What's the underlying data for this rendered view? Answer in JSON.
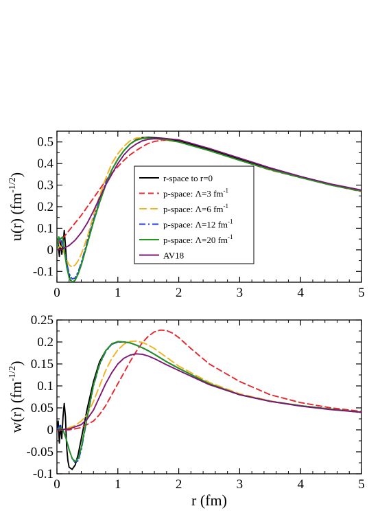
{
  "colors": {
    "r_space": "#000000",
    "lambda3": "#e8262b",
    "lambda6": "#f2b21c",
    "lambda12": "#1f3de6",
    "lambda20": "#22941f",
    "av18": "#7b1672"
  },
  "chart_data": [
    {
      "type": "line",
      "ylabel": "u(r) (fm^-1/2)",
      "xlim": [
        0,
        5
      ],
      "ylim": [
        -0.15,
        0.55
      ],
      "xticks": [
        "0",
        "1",
        "2",
        "3",
        "4",
        "5"
      ],
      "yticks": [
        "-0.1",
        "0",
        "0.1",
        "0.2",
        "0.3",
        "0.4",
        "0.5"
      ],
      "legend_position": "center-left",
      "series": [
        {
          "name": "r-space to r=0",
          "color_key": "r_space",
          "dash": "solid",
          "x": [
            0.0,
            0.02,
            0.04,
            0.06,
            0.08,
            0.1,
            0.12,
            0.14,
            0.16,
            0.18,
            0.22,
            0.26,
            0.3,
            0.35,
            0.4,
            0.5,
            0.6,
            0.7,
            0.8,
            0.9,
            1.0,
            1.1,
            1.2,
            1.3,
            1.4,
            1.5,
            1.6,
            1.8,
            2.0,
            2.5,
            3.0,
            3.5,
            4.0,
            4.5,
            5.0
          ],
          "y": [
            0.0,
            0.03,
            -0.03,
            0.04,
            -0.02,
            0.02,
            0.09,
            0.02,
            -0.06,
            -0.1,
            -0.14,
            -0.15,
            -0.14,
            -0.11,
            -0.07,
            0.03,
            0.13,
            0.22,
            0.3,
            0.37,
            0.42,
            0.46,
            0.49,
            0.51,
            0.52,
            0.522,
            0.52,
            0.515,
            0.505,
            0.465,
            0.42,
            0.375,
            0.34,
            0.3,
            0.275
          ]
        },
        {
          "name": "p-space: Λ=3 fm",
          "name_sup": "-1",
          "color_key": "lambda3",
          "dash": "8,5",
          "x": [
            0.0,
            0.1,
            0.2,
            0.3,
            0.4,
            0.5,
            0.6,
            0.7,
            0.8,
            0.9,
            1.0,
            1.1,
            1.2,
            1.3,
            1.4,
            1.5,
            1.6,
            1.7,
            1.8,
            2.0,
            2.5,
            3.0,
            3.5,
            4.0,
            4.5,
            5.0
          ],
          "y": [
            0.02,
            0.055,
            0.09,
            0.125,
            0.16,
            0.2,
            0.24,
            0.28,
            0.32,
            0.355,
            0.385,
            0.415,
            0.44,
            0.46,
            0.478,
            0.493,
            0.502,
            0.507,
            0.508,
            0.5,
            0.46,
            0.415,
            0.37,
            0.335,
            0.3,
            0.27
          ]
        },
        {
          "name": "p-space: Λ=6 fm",
          "name_sup": "-1",
          "color_key": "lambda6",
          "dash": "11,5",
          "x": [
            0.0,
            0.05,
            0.1,
            0.15,
            0.2,
            0.25,
            0.3,
            0.35,
            0.4,
            0.5,
            0.6,
            0.7,
            0.8,
            0.9,
            1.0,
            1.1,
            1.2,
            1.3,
            1.4,
            1.5,
            1.6,
            1.8,
            2.0,
            2.5,
            3.0,
            3.5,
            4.0,
            4.5,
            5.0
          ],
          "y": [
            0.0,
            0.02,
            0.0,
            -0.04,
            -0.07,
            -0.08,
            -0.07,
            -0.05,
            -0.02,
            0.06,
            0.16,
            0.25,
            0.33,
            0.4,
            0.445,
            0.48,
            0.505,
            0.518,
            0.52,
            0.518,
            0.515,
            0.508,
            0.5,
            0.46,
            0.415,
            0.372,
            0.335,
            0.3,
            0.272
          ]
        },
        {
          "name": "p-space: Λ=12 fm",
          "name_sup": "-1",
          "color_key": "lambda12",
          "dash": "9,4,2,4",
          "x": [
            0.0,
            0.04,
            0.08,
            0.12,
            0.16,
            0.2,
            0.25,
            0.3,
            0.35,
            0.4,
            0.5,
            0.6,
            0.7,
            0.8,
            0.9,
            1.0,
            1.1,
            1.2,
            1.3,
            1.4,
            1.5,
            1.6,
            1.8,
            2.0,
            2.5,
            3.0,
            3.5,
            4.0,
            4.5,
            5.0
          ],
          "y": [
            0.0,
            0.05,
            0.04,
            0.0,
            -0.06,
            -0.11,
            -0.135,
            -0.13,
            -0.1,
            -0.06,
            0.04,
            0.14,
            0.23,
            0.31,
            0.37,
            0.42,
            0.46,
            0.49,
            0.508,
            0.516,
            0.518,
            0.516,
            0.51,
            0.5,
            0.46,
            0.415,
            0.372,
            0.335,
            0.3,
            0.272
          ]
        },
        {
          "name": "p-space: Λ=20 fm",
          "name_sup": "-1",
          "color_key": "lambda20",
          "dash": "solid",
          "x": [
            0.0,
            0.03,
            0.06,
            0.09,
            0.12,
            0.16,
            0.2,
            0.25,
            0.3,
            0.35,
            0.4,
            0.5,
            0.6,
            0.7,
            0.8,
            0.9,
            1.0,
            1.1,
            1.2,
            1.3,
            1.4,
            1.5,
            1.6,
            1.8,
            2.0,
            2.5,
            3.0,
            3.5,
            4.0,
            4.5,
            5.0
          ],
          "y": [
            0.0,
            0.06,
            0.05,
            0.06,
            0.0,
            -0.08,
            -0.13,
            -0.15,
            -0.14,
            -0.11,
            -0.07,
            0.03,
            0.13,
            0.22,
            0.3,
            0.37,
            0.42,
            0.46,
            0.49,
            0.508,
            0.516,
            0.518,
            0.516,
            0.51,
            0.5,
            0.46,
            0.415,
            0.372,
            0.335,
            0.3,
            0.272
          ]
        },
        {
          "name": "AV18",
          "color_key": "av18",
          "dash": "solid",
          "x": [
            0.0,
            0.1,
            0.2,
            0.3,
            0.4,
            0.5,
            0.6,
            0.7,
            0.8,
            0.9,
            1.0,
            1.1,
            1.2,
            1.3,
            1.4,
            1.5,
            1.6,
            1.8,
            2.0,
            2.5,
            3.0,
            3.5,
            4.0,
            4.5,
            5.0
          ],
          "y": [
            0.0,
            0.005,
            0.02,
            0.045,
            0.08,
            0.125,
            0.18,
            0.24,
            0.3,
            0.35,
            0.4,
            0.44,
            0.47,
            0.49,
            0.505,
            0.512,
            0.515,
            0.515,
            0.51,
            0.47,
            0.425,
            0.38,
            0.34,
            0.305,
            0.277
          ]
        }
      ]
    },
    {
      "type": "line",
      "xlabel": "r (fm)",
      "ylabel": "w(r) (fm^-1/2)",
      "xlim": [
        0,
        5
      ],
      "ylim": [
        -0.1,
        0.25
      ],
      "xticks": [
        "0",
        "1",
        "2",
        "3",
        "4",
        "5"
      ],
      "yticks": [
        "-0.1",
        "-0.05",
        "0",
        "0.05",
        "0.1",
        "0.15",
        "0.2",
        "0.25"
      ],
      "series": [
        {
          "name": "r-space to r=0",
          "color_key": "r_space",
          "x": [
            0.0,
            0.02,
            0.04,
            0.06,
            0.08,
            0.1,
            0.12,
            0.14,
            0.16,
            0.18,
            0.2,
            0.25,
            0.3,
            0.35,
            0.4,
            0.5,
            0.6,
            0.7,
            0.8,
            0.9,
            1.0,
            1.1,
            1.2,
            1.3,
            1.4,
            1.5,
            1.6,
            1.8,
            2.0,
            2.5,
            3.0,
            3.5,
            4.0,
            4.5,
            5.0
          ],
          "y": [
            0.0,
            0.02,
            -0.03,
            0.01,
            -0.02,
            0.03,
            0.06,
            0.03,
            -0.04,
            -0.07,
            -0.085,
            -0.09,
            -0.08,
            -0.055,
            -0.02,
            0.05,
            0.11,
            0.155,
            0.18,
            0.195,
            0.2,
            0.2,
            0.198,
            0.193,
            0.187,
            0.18,
            0.172,
            0.155,
            0.14,
            0.105,
            0.08,
            0.065,
            0.055,
            0.047,
            0.04
          ]
        },
        {
          "name": "p-space: Λ=3 fm",
          "color_key": "lambda3",
          "x": [
            0.0,
            0.2,
            0.4,
            0.6,
            0.7,
            0.8,
            0.9,
            1.0,
            1.1,
            1.2,
            1.3,
            1.4,
            1.5,
            1.6,
            1.7,
            1.8,
            1.9,
            2.0,
            2.2,
            2.5,
            3.0,
            3.5,
            4.0,
            4.5,
            5.0
          ],
          "y": [
            0.0,
            0.0,
            0.005,
            0.02,
            0.035,
            0.055,
            0.08,
            0.105,
            0.13,
            0.155,
            0.178,
            0.198,
            0.213,
            0.223,
            0.227,
            0.226,
            0.22,
            0.21,
            0.185,
            0.15,
            0.11,
            0.08,
            0.062,
            0.05,
            0.042
          ]
        },
        {
          "name": "p-space: Λ=6 fm",
          "color_key": "lambda6",
          "x": [
            0.0,
            0.1,
            0.2,
            0.3,
            0.4,
            0.5,
            0.6,
            0.7,
            0.8,
            0.9,
            1.0,
            1.1,
            1.2,
            1.3,
            1.4,
            1.5,
            1.6,
            1.8,
            2.0,
            2.5,
            3.0,
            3.5,
            4.0,
            4.5,
            5.0
          ],
          "y": [
            0.0,
            0.0,
            0.005,
            0.01,
            0.02,
            0.035,
            0.065,
            0.1,
            0.135,
            0.162,
            0.182,
            0.195,
            0.201,
            0.202,
            0.199,
            0.193,
            0.185,
            0.165,
            0.145,
            0.108,
            0.082,
            0.066,
            0.055,
            0.047,
            0.04
          ]
        },
        {
          "name": "p-space: Λ=12 fm",
          "color_key": "lambda12",
          "x": [
            0.0,
            0.05,
            0.1,
            0.15,
            0.2,
            0.25,
            0.3,
            0.35,
            0.4,
            0.5,
            0.6,
            0.7,
            0.8,
            0.9,
            1.0,
            1.1,
            1.2,
            1.3,
            1.4,
            1.5,
            1.6,
            1.8,
            2.0,
            2.5,
            3.0,
            3.5,
            4.0,
            4.5,
            5.0
          ],
          "y": [
            0.0,
            0.01,
            0.0,
            -0.02,
            -0.045,
            -0.065,
            -0.075,
            -0.07,
            -0.045,
            0.03,
            0.1,
            0.148,
            0.178,
            0.195,
            0.2,
            0.2,
            0.198,
            0.193,
            0.187,
            0.18,
            0.172,
            0.155,
            0.14,
            0.105,
            0.08,
            0.065,
            0.055,
            0.047,
            0.04
          ]
        },
        {
          "name": "p-space: Λ=20 fm",
          "color_key": "lambda20",
          "x": [
            0.0,
            0.05,
            0.1,
            0.15,
            0.2,
            0.25,
            0.3,
            0.35,
            0.4,
            0.5,
            0.6,
            0.7,
            0.8,
            0.9,
            1.0,
            1.1,
            1.2,
            1.3,
            1.4,
            1.5,
            1.6,
            1.8,
            2.0,
            2.5,
            3.0,
            3.5,
            4.0,
            4.5,
            5.0
          ],
          "y": [
            0.0,
            0.005,
            0.0,
            -0.02,
            -0.045,
            -0.065,
            -0.072,
            -0.065,
            -0.04,
            0.032,
            0.102,
            0.15,
            0.18,
            0.196,
            0.201,
            0.2,
            0.198,
            0.193,
            0.187,
            0.18,
            0.172,
            0.155,
            0.14,
            0.105,
            0.08,
            0.065,
            0.055,
            0.047,
            0.04
          ]
        },
        {
          "name": "AV18",
          "color_key": "av18",
          "x": [
            0.0,
            0.2,
            0.4,
            0.5,
            0.6,
            0.7,
            0.8,
            0.9,
            1.0,
            1.1,
            1.2,
            1.3,
            1.4,
            1.5,
            1.6,
            1.8,
            2.0,
            2.5,
            3.0,
            3.5,
            4.0,
            4.5,
            5.0
          ],
          "y": [
            0.0,
            0.002,
            0.012,
            0.025,
            0.045,
            0.075,
            0.105,
            0.13,
            0.15,
            0.163,
            0.17,
            0.173,
            0.172,
            0.168,
            0.162,
            0.148,
            0.135,
            0.103,
            0.08,
            0.065,
            0.054,
            0.046,
            0.04
          ]
        }
      ]
    }
  ]
}
